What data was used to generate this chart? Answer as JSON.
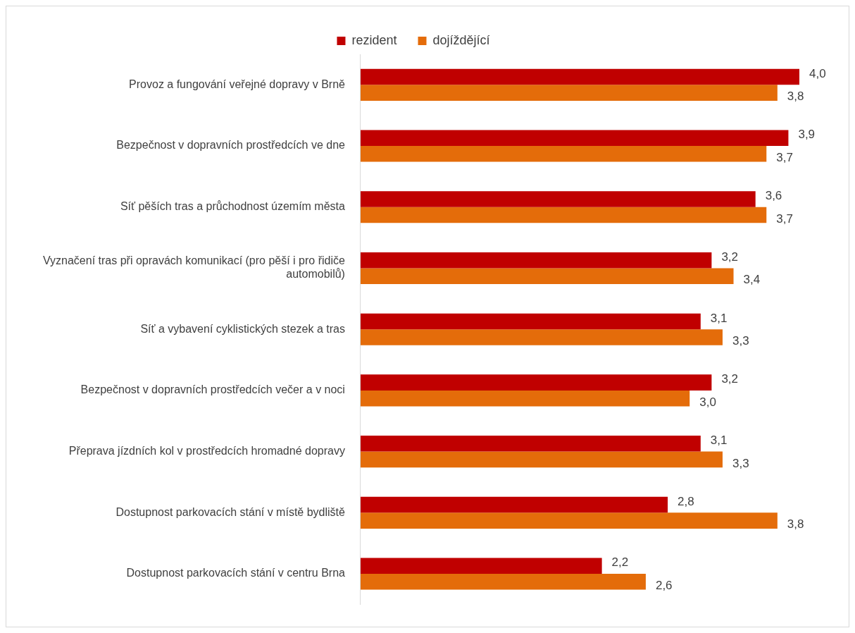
{
  "chart_data": {
    "type": "bar",
    "orientation": "horizontal",
    "legend": "top",
    "grid": false,
    "categories": [
      "Provoz a fungování veřejné dopravy v Brně",
      "Bezpečnost v dopravních prostředcích ve dne",
      "Síť pěších tras a průchodnost územím města",
      "Vyznačení tras při opravách komunikací (pro pěší i pro řidiče automobilů)",
      "Síť a vybavení cyklistických stezek a tras",
      "Bezpečnost v dopravních prostředcích večer a v noci",
      "Přeprava jízdních kol v prostředcích hromadné dopravy",
      "Dostupnost parkovacích stání v místě bydliště",
      "Dostupnost parkovacích stání v centru Brna"
    ],
    "series": [
      {
        "name": "rezident",
        "color": "#c00000",
        "values": [
          4.0,
          3.9,
          3.6,
          3.2,
          3.1,
          3.2,
          3.1,
          2.8,
          2.2
        ],
        "value_labels": [
          "4,0",
          "3,9",
          "3,6",
          "3,2",
          "3,1",
          "3,2",
          "3,1",
          "2,8",
          "2,2"
        ]
      },
      {
        "name": "dojíždějící",
        "color": "#e46c0a",
        "values": [
          3.8,
          3.7,
          3.7,
          3.4,
          3.3,
          3.0,
          3.3,
          3.8,
          2.6
        ],
        "value_labels": [
          "3,8",
          "3,7",
          "3,7",
          "3,4",
          "3,3",
          "3,0",
          "3,3",
          "3,8",
          "2,6"
        ]
      }
    ]
  }
}
